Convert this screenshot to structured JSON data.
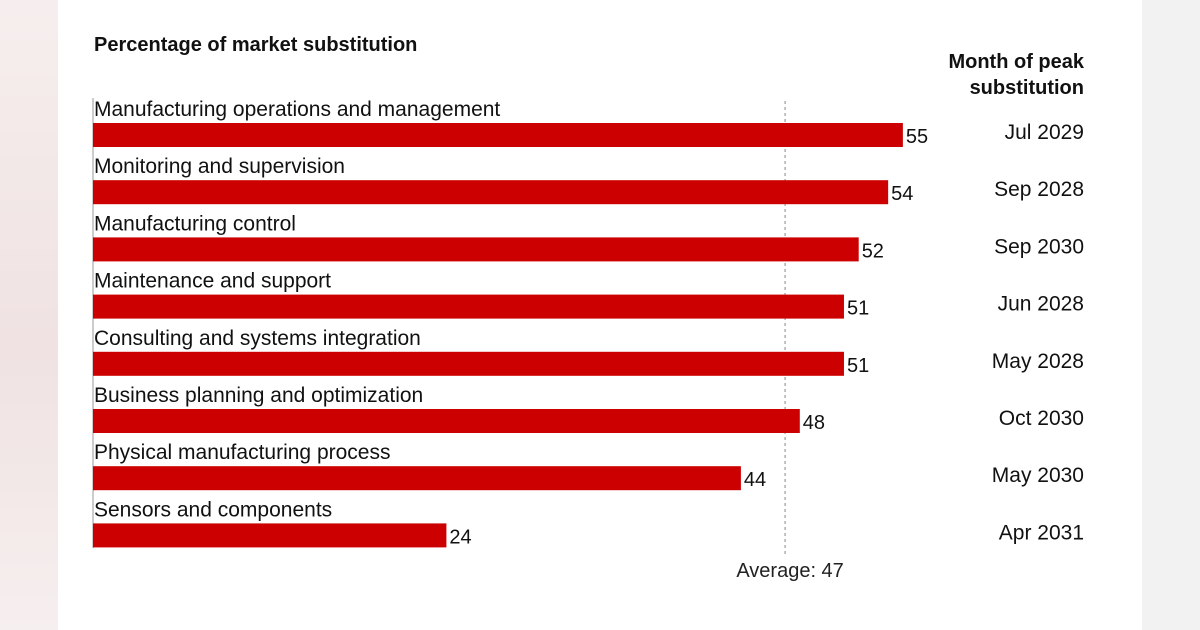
{
  "chart_data": {
    "type": "bar",
    "orientation": "horizontal",
    "title": "Percentage of market substitution",
    "right_column_header": [
      "Month of peak",
      "substitution"
    ],
    "categories": [
      "Manufacturing operations and management",
      "Monitoring and supervision",
      "Manufacturing control",
      "Maintenance and support",
      "Consulting and systems integration",
      "Business planning and optimization",
      "Physical manufacturing process",
      "Sensors and components"
    ],
    "values": [
      55,
      54,
      52,
      51,
      51,
      48,
      44,
      24
    ],
    "peak_months": [
      "Jul 2029",
      "Sep 2028",
      "Sep 2030",
      "Jun 2028",
      "May 2028",
      "Oct 2030",
      "May 2030",
      "Apr 2031"
    ],
    "average": 47,
    "average_label": "Average: 47",
    "bar_color": "#cc0000",
    "grid": false,
    "legend": "none"
  }
}
